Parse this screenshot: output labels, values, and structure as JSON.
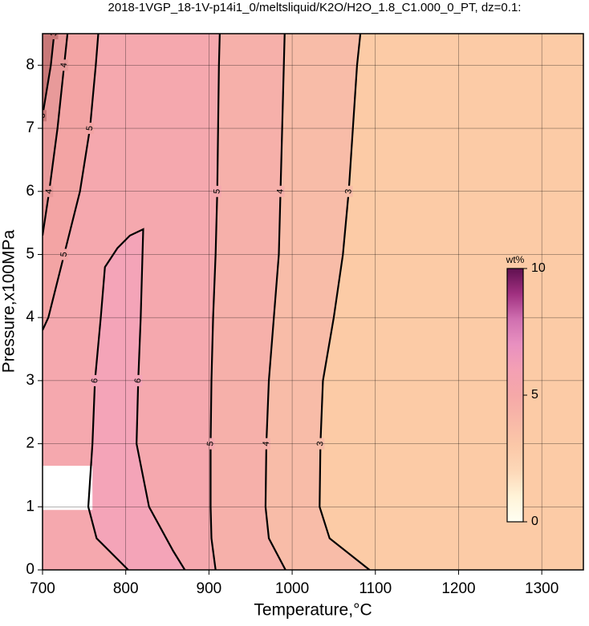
{
  "chart_data": {
    "type": "contour",
    "title": "2018-1VGP_18-1V-p14i1_0/meltsliquid/K2O/H2O_1.8_C1.000_0_PT, dz=0.1:",
    "x_label": "Temperature,°C",
    "y_label": "Pressure,x100MPa",
    "xlim": [
      700,
      1350
    ],
    "ylim": [
      0,
      8.5
    ],
    "xticks": [
      700,
      800,
      900,
      1000,
      1100,
      1200,
      1300
    ],
    "yticks": [
      0,
      1,
      2,
      3,
      4,
      5,
      6,
      7,
      8
    ],
    "grid": true,
    "background": "#fccba6",
    "contours": [
      {
        "level": 3,
        "fill": "#f8bca8",
        "y": [
          0,
          0.5,
          1,
          2,
          3,
          4,
          5,
          6,
          7,
          8,
          8.5
        ],
        "x": [
          1093,
          1045,
          1033,
          1034,
          1037,
          1050,
          1061,
          1068,
          1073,
          1078,
          1082
        ]
      },
      {
        "level": 4,
        "fill": "#f6b0aa",
        "y": [
          0,
          0.5,
          1,
          2,
          3,
          4,
          5,
          6,
          7,
          8,
          8.5
        ],
        "x": [
          992,
          972,
          968,
          969,
          972,
          978,
          984,
          986,
          988,
          990,
          991
        ]
      },
      {
        "level": 5,
        "fill": "#f5a8ae",
        "y": [
          0,
          0.5,
          1,
          2,
          3,
          4,
          5,
          6,
          7,
          8,
          8.5
        ],
        "x": [
          908,
          903,
          902,
          902,
          903,
          905,
          908,
          910,
          911,
          912,
          913
        ]
      },
      {
        "level": 6,
        "fill": "#f4a4b8",
        "y": [
          0,
          0.5,
          1,
          2,
          3,
          4,
          4.8,
          5.1,
          5.3,
          5.4,
          4,
          3,
          2,
          1,
          0.3,
          0
        ],
        "x": [
          803,
          765,
          755,
          760,
          763,
          770,
          775,
          790,
          805,
          821,
          818,
          815,
          813,
          828,
          857,
          871
        ]
      },
      {
        "level": 5,
        "fill": "#f3a4a4",
        "y": [
          3.8,
          4,
          5,
          6,
          7,
          8,
          8.5
        ],
        "x": [
          700,
          707,
          726,
          745,
          757,
          764,
          767
        ]
      },
      {
        "level": 4,
        "fill": "#e89a9a",
        "y": [
          5.3,
          6,
          7,
          8,
          8.5
        ],
        "x": [
          700,
          708,
          718,
          726,
          730
        ]
      },
      {
        "level": 3,
        "fill": "#c87878",
        "y": [
          7.2,
          8,
          8.5
        ],
        "x": [
          700,
          710,
          714
        ]
      }
    ],
    "colorbar": {
      "label": "wt%",
      "lim": [
        0,
        10
      ],
      "ticks": [
        0,
        5,
        10
      ],
      "colors": [
        "#fffff2",
        "#fff3d8",
        "#fdd8b8",
        "#fbc8a8",
        "#f8b8a8",
        "#f5a8a8",
        "#f4a0b4",
        "#e890c0",
        "#d070b0",
        "#a03080",
        "#601050"
      ]
    }
  }
}
